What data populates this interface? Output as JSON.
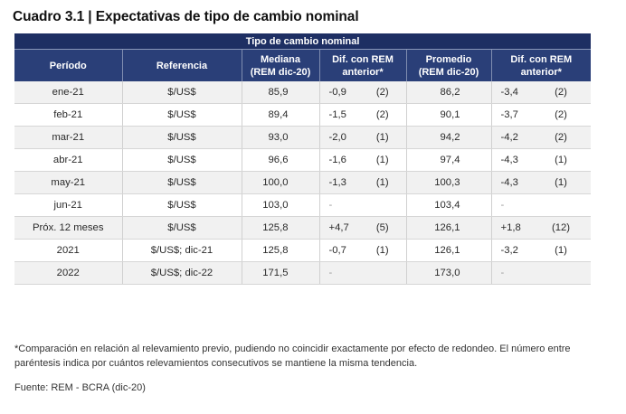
{
  "title": "Cuadro 3.1 | Expectativas de tipo de cambio nominal",
  "table": {
    "group_header": "Tipo de cambio nominal",
    "columns": {
      "periodo": "Período",
      "referencia": "Referencia",
      "mediana_l1": "Mediana",
      "mediana_l2": "(REM dic-20)",
      "dif1_l1": "Dif. con REM",
      "dif1_l2": "anterior*",
      "promedio_l1": "Promedio",
      "promedio_l2": "(REM dic-20)",
      "dif2_l1": "Dif. con REM",
      "dif2_l2": "anterior*"
    },
    "rows": [
      {
        "periodo": "ene-21",
        "referencia": "$/US$",
        "mediana": "85,9",
        "dif_med": "-0,9",
        "n_med": "(2)",
        "promedio": "86,2",
        "dif_prom": "-3,4",
        "n_prom": "(2)"
      },
      {
        "periodo": "feb-21",
        "referencia": "$/US$",
        "mediana": "89,4",
        "dif_med": "-1,5",
        "n_med": "(2)",
        "promedio": "90,1",
        "dif_prom": "-3,7",
        "n_prom": "(2)"
      },
      {
        "periodo": "mar-21",
        "referencia": "$/US$",
        "mediana": "93,0",
        "dif_med": "-2,0",
        "n_med": "(1)",
        "promedio": "94,2",
        "dif_prom": "-4,2",
        "n_prom": "(2)"
      },
      {
        "periodo": "abr-21",
        "referencia": "$/US$",
        "mediana": "96,6",
        "dif_med": "-1,6",
        "n_med": "(1)",
        "promedio": "97,4",
        "dif_prom": "-4,3",
        "n_prom": "(1)"
      },
      {
        "periodo": "may-21",
        "referencia": "$/US$",
        "mediana": "100,0",
        "dif_med": "-1,3",
        "n_med": "(1)",
        "promedio": "100,3",
        "dif_prom": "-4,3",
        "n_prom": "(1)"
      },
      {
        "periodo": "jun-21",
        "referencia": "$/US$",
        "mediana": "103,0",
        "dif_med": "-",
        "n_med": "",
        "promedio": "103,4",
        "dif_prom": "-",
        "n_prom": ""
      },
      {
        "periodo": "Próx. 12 meses",
        "referencia": "$/US$",
        "mediana": "125,8",
        "dif_med": "+4,7",
        "n_med": "(5)",
        "promedio": "126,1",
        "dif_prom": "+1,8",
        "n_prom": "(12)"
      },
      {
        "periodo": "2021",
        "referencia": "$/US$; dic-21",
        "mediana": "125,8",
        "dif_med": "-0,7",
        "n_med": "(1)",
        "promedio": "126,1",
        "dif_prom": "-3,2",
        "n_prom": "(1)"
      },
      {
        "periodo": "2022",
        "referencia": "$/US$; dic-22",
        "mediana": "171,5",
        "dif_med": "-",
        "n_med": "",
        "promedio": "173,0",
        "dif_prom": "-",
        "n_prom": ""
      }
    ]
  },
  "footnote": "*Comparación en relación al relevamiento previo, pudiendo no coincidir exactamente por efecto de redondeo. El número entre paréntesis indica por cuántos relevamientos consecutivos se mantiene la misma tendencia.",
  "source": "Fuente: REM - BCRA (dic-20)"
}
